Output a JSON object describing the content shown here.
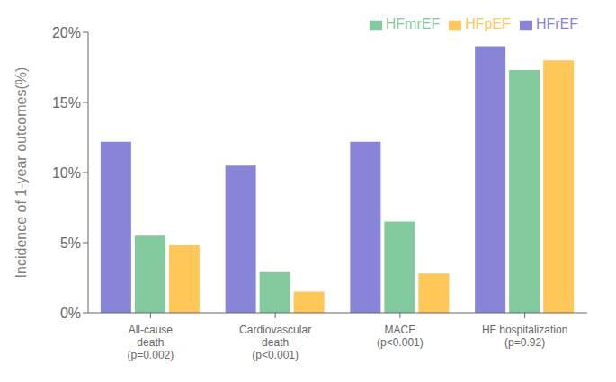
{
  "chart_data": {
    "type": "bar",
    "categories": [
      "All-cause\ndeath\n(p=0.002)",
      "Cardiovascular\ndeath\n(p<0.001)",
      "MACE\n(p<0.001)",
      "HF hospitalization\n(p=0.92)"
    ],
    "series": [
      {
        "name": "HFrEF",
        "color": "#8884d8",
        "values": [
          12.2,
          10.5,
          12.2,
          19.0
        ]
      },
      {
        "name": "HFmrEF",
        "color": "#82ca9d",
        "values": [
          5.5,
          2.9,
          6.5,
          17.3
        ]
      },
      {
        "name": "HFpEF",
        "color": "#ffc658",
        "values": [
          4.8,
          1.5,
          2.8,
          18.0
        ]
      }
    ],
    "ylabel": "Incidence of 1-year outcomes(%)",
    "ylim": [
      0,
      20
    ],
    "yticks": [
      {
        "value": 0,
        "label": "0%"
      },
      {
        "value": 5,
        "label": "5%"
      },
      {
        "value": 10,
        "label": "10%"
      },
      {
        "value": 15,
        "label": "15%"
      },
      {
        "value": 20,
        "label": "20%"
      }
    ],
    "grid": false,
    "legend": "upper right"
  }
}
